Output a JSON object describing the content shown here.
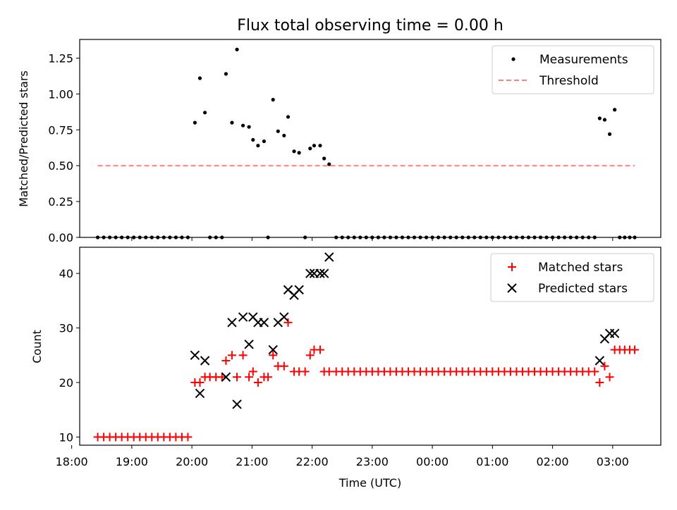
{
  "figure": {
    "title": "Flux total observing time = 0.00 h",
    "xlabel": "Time (UTC)",
    "xticks": [
      "18:00",
      "19:00",
      "20:00",
      "21:00",
      "22:00",
      "23:00",
      "00:00",
      "01:00",
      "02:00",
      "03:00"
    ]
  },
  "chart_data": [
    {
      "type": "scatter",
      "ylabel": "Matched/Predicted stars",
      "ylim": [
        0,
        1.38
      ],
      "yticks": [
        "0.00",
        "0.25",
        "0.50",
        "0.75",
        "1.00",
        "1.25"
      ],
      "xlim": [
        "18:08",
        "03:48"
      ],
      "legend_placement": "top-right",
      "series": [
        {
          "name": "Measurements",
          "color": "#000000",
          "marker": "dot",
          "points": [
            [
              "18:26",
              0
            ],
            [
              "18:32",
              0
            ],
            [
              "18:38",
              0
            ],
            [
              "18:44",
              0
            ],
            [
              "18:50",
              0
            ],
            [
              "18:56",
              0
            ],
            [
              "19:02",
              0
            ],
            [
              "19:08",
              0
            ],
            [
              "19:14",
              0
            ],
            [
              "19:20",
              0
            ],
            [
              "19:26",
              0
            ],
            [
              "19:32",
              0
            ],
            [
              "19:38",
              0
            ],
            [
              "19:44",
              0
            ],
            [
              "19:50",
              0
            ],
            [
              "19:56",
              0
            ],
            [
              "20:03",
              0.8
            ],
            [
              "20:08",
              1.11
            ],
            [
              "20:13",
              0.87
            ],
            [
              "20:18",
              0
            ],
            [
              "20:24",
              0
            ],
            [
              "20:30",
              0
            ],
            [
              "20:34",
              1.14
            ],
            [
              "20:40",
              0.8
            ],
            [
              "20:45",
              1.31
            ],
            [
              "20:51",
              0.78
            ],
            [
              "20:57",
              0.77
            ],
            [
              "21:01",
              0.68
            ],
            [
              "21:06",
              0.64
            ],
            [
              "21:12",
              0.67
            ],
            [
              "21:16",
              0
            ],
            [
              "21:21",
              0.96
            ],
            [
              "21:26",
              0.74
            ],
            [
              "21:32",
              0.71
            ],
            [
              "21:36",
              0.84
            ],
            [
              "21:42",
              0.6
            ],
            [
              "21:47",
              0.59
            ],
            [
              "21:53",
              0
            ],
            [
              "21:58",
              0.62
            ],
            [
              "22:02",
              0.64
            ],
            [
              "22:08",
              0.64
            ],
            [
              "22:12",
              0.55
            ],
            [
              "22:17",
              0.51
            ],
            [
              "22:24",
              0
            ],
            [
              "22:30",
              0
            ],
            [
              "22:36",
              0
            ],
            [
              "22:42",
              0
            ],
            [
              "22:48",
              0
            ],
            [
              "22:54",
              0
            ],
            [
              "23:00",
              0
            ],
            [
              "23:06",
              0
            ],
            [
              "23:12",
              0
            ],
            [
              "23:18",
              0
            ],
            [
              "23:24",
              0
            ],
            [
              "23:30",
              0
            ],
            [
              "23:36",
              0
            ],
            [
              "23:42",
              0
            ],
            [
              "23:48",
              0
            ],
            [
              "23:54",
              0
            ],
            [
              "00:00",
              0
            ],
            [
              "00:06",
              0
            ],
            [
              "00:12",
              0
            ],
            [
              "00:18",
              0
            ],
            [
              "00:24",
              0
            ],
            [
              "00:30",
              0
            ],
            [
              "00:36",
              0
            ],
            [
              "00:42",
              0
            ],
            [
              "00:48",
              0
            ],
            [
              "00:54",
              0
            ],
            [
              "01:00",
              0
            ],
            [
              "01:06",
              0
            ],
            [
              "01:12",
              0
            ],
            [
              "01:18",
              0
            ],
            [
              "01:24",
              0
            ],
            [
              "01:30",
              0
            ],
            [
              "01:36",
              0
            ],
            [
              "01:42",
              0
            ],
            [
              "01:48",
              0
            ],
            [
              "01:54",
              0
            ],
            [
              "02:00",
              0
            ],
            [
              "02:06",
              0
            ],
            [
              "02:12",
              0
            ],
            [
              "02:18",
              0
            ],
            [
              "02:24",
              0
            ],
            [
              "02:30",
              0
            ],
            [
              "02:36",
              0
            ],
            [
              "02:42",
              0
            ],
            [
              "02:47",
              0.83
            ],
            [
              "02:52",
              0.82
            ],
            [
              "02:57",
              0.72
            ],
            [
              "03:02",
              0.89
            ],
            [
              "03:07",
              0
            ],
            [
              "03:12",
              0
            ],
            [
              "03:17",
              0
            ],
            [
              "03:22",
              0
            ]
          ]
        },
        {
          "name": "Threshold",
          "color": "#ff7f7f",
          "style": "dashed",
          "points": [
            [
              "18:26",
              0.5
            ],
            [
              "03:22",
              0.5
            ]
          ]
        }
      ]
    },
    {
      "type": "scatter",
      "ylabel": "Count",
      "ylim": [
        8.5,
        44.8
      ],
      "yticks": [
        "10",
        "20",
        "30",
        "40"
      ],
      "xlim": [
        "18:08",
        "03:48"
      ],
      "legend_placement": "top-right",
      "series": [
        {
          "name": "Matched stars",
          "color": "#ff0000",
          "marker": "plus",
          "points": [
            [
              "18:26",
              10
            ],
            [
              "18:32",
              10
            ],
            [
              "18:38",
              10
            ],
            [
              "18:44",
              10
            ],
            [
              "18:50",
              10
            ],
            [
              "18:56",
              10
            ],
            [
              "19:02",
              10
            ],
            [
              "19:08",
              10
            ],
            [
              "19:14",
              10
            ],
            [
              "19:20",
              10
            ],
            [
              "19:26",
              10
            ],
            [
              "19:32",
              10
            ],
            [
              "19:38",
              10
            ],
            [
              "19:44",
              10
            ],
            [
              "19:50",
              10
            ],
            [
              "19:56",
              10
            ],
            [
              "20:03",
              20
            ],
            [
              "20:08",
              20
            ],
            [
              "20:13",
              21
            ],
            [
              "20:18",
              21
            ],
            [
              "20:24",
              21
            ],
            [
              "20:30",
              21
            ],
            [
              "20:34",
              24
            ],
            [
              "20:40",
              25
            ],
            [
              "20:45",
              21
            ],
            [
              "20:51",
              25
            ],
            [
              "20:57",
              21
            ],
            [
              "21:01",
              22
            ],
            [
              "21:06",
              20
            ],
            [
              "21:12",
              21
            ],
            [
              "21:16",
              21
            ],
            [
              "21:21",
              25
            ],
            [
              "21:26",
              23
            ],
            [
              "21:32",
              23
            ],
            [
              "21:36",
              31
            ],
            [
              "21:42",
              22
            ],
            [
              "21:47",
              22
            ],
            [
              "21:53",
              22
            ],
            [
              "21:58",
              25
            ],
            [
              "22:02",
              26
            ],
            [
              "22:08",
              26
            ],
            [
              "22:12",
              22
            ],
            [
              "22:17",
              22
            ],
            [
              "22:24",
              22
            ],
            [
              "22:30",
              22
            ],
            [
              "22:36",
              22
            ],
            [
              "22:42",
              22
            ],
            [
              "22:48",
              22
            ],
            [
              "22:54",
              22
            ],
            [
              "23:00",
              22
            ],
            [
              "23:06",
              22
            ],
            [
              "23:12",
              22
            ],
            [
              "23:18",
              22
            ],
            [
              "23:24",
              22
            ],
            [
              "23:30",
              22
            ],
            [
              "23:36",
              22
            ],
            [
              "23:42",
              22
            ],
            [
              "23:48",
              22
            ],
            [
              "23:54",
              22
            ],
            [
              "00:00",
              22
            ],
            [
              "00:06",
              22
            ],
            [
              "00:12",
              22
            ],
            [
              "00:18",
              22
            ],
            [
              "00:24",
              22
            ],
            [
              "00:30",
              22
            ],
            [
              "00:36",
              22
            ],
            [
              "00:42",
              22
            ],
            [
              "00:48",
              22
            ],
            [
              "00:54",
              22
            ],
            [
              "01:00",
              22
            ],
            [
              "01:06",
              22
            ],
            [
              "01:12",
              22
            ],
            [
              "01:18",
              22
            ],
            [
              "01:24",
              22
            ],
            [
              "01:30",
              22
            ],
            [
              "01:36",
              22
            ],
            [
              "01:42",
              22
            ],
            [
              "01:48",
              22
            ],
            [
              "01:54",
              22
            ],
            [
              "02:00",
              22
            ],
            [
              "02:06",
              22
            ],
            [
              "02:12",
              22
            ],
            [
              "02:18",
              22
            ],
            [
              "02:24",
              22
            ],
            [
              "02:30",
              22
            ],
            [
              "02:36",
              22
            ],
            [
              "02:42",
              22
            ],
            [
              "02:47",
              20
            ],
            [
              "02:52",
              23
            ],
            [
              "02:57",
              21
            ],
            [
              "03:02",
              26
            ],
            [
              "03:07",
              26
            ],
            [
              "03:12",
              26
            ],
            [
              "03:17",
              26
            ],
            [
              "03:22",
              26
            ]
          ]
        },
        {
          "name": "Predicted stars",
          "color": "#000000",
          "marker": "x",
          "points": [
            [
              "20:03",
              25
            ],
            [
              "20:08",
              18
            ],
            [
              "20:13",
              24
            ],
            [
              "20:34",
              21
            ],
            [
              "20:40",
              31
            ],
            [
              "20:45",
              16
            ],
            [
              "20:51",
              32
            ],
            [
              "20:57",
              27
            ],
            [
              "21:01",
              32
            ],
            [
              "21:06",
              31
            ],
            [
              "21:12",
              31
            ],
            [
              "21:21",
              26
            ],
            [
              "21:26",
              31
            ],
            [
              "21:32",
              32
            ],
            [
              "21:36",
              37
            ],
            [
              "21:42",
              36
            ],
            [
              "21:47",
              37
            ],
            [
              "21:58",
              40
            ],
            [
              "22:02",
              40
            ],
            [
              "22:08",
              40
            ],
            [
              "22:12",
              40
            ],
            [
              "22:17",
              43
            ],
            [
              "02:47",
              24
            ],
            [
              "02:52",
              28
            ],
            [
              "02:57",
              29
            ],
            [
              "03:02",
              29
            ]
          ]
        }
      ]
    }
  ]
}
